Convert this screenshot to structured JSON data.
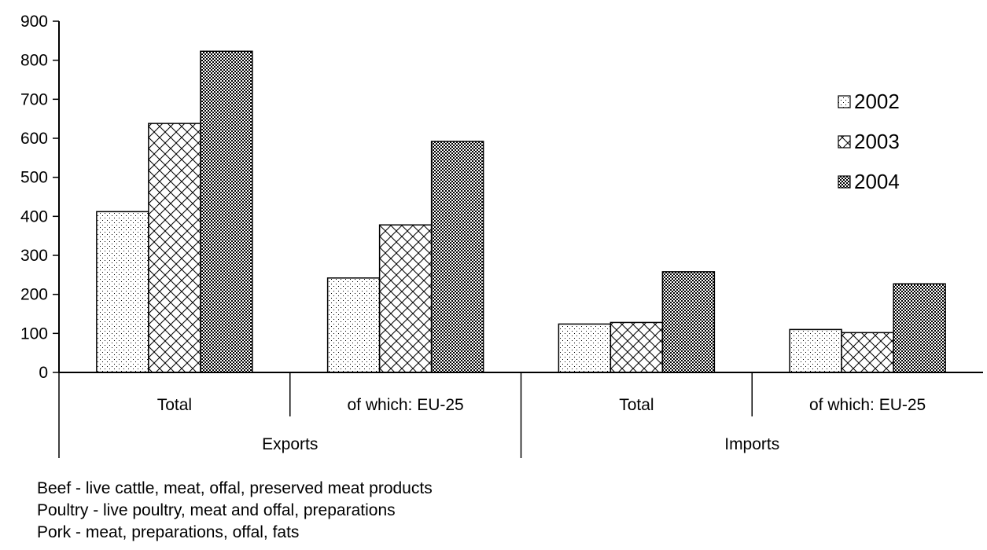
{
  "chart_data": {
    "type": "bar",
    "groups": [
      {
        "label": "Exports",
        "categories": [
          "Total",
          "of which: EU-25"
        ]
      },
      {
        "label": "Imports",
        "categories": [
          "Total",
          "of which: EU-25"
        ]
      }
    ],
    "categories": [
      "Total",
      "of which: EU-25",
      "Total",
      "of which: EU-25"
    ],
    "series": [
      {
        "name": "2002",
        "values": [
          412,
          242,
          124,
          110
        ]
      },
      {
        "name": "2003",
        "values": [
          638,
          378,
          128,
          102
        ]
      },
      {
        "name": "2004",
        "values": [
          823,
          592,
          258,
          227
        ]
      }
    ],
    "ylim": [
      0,
      900
    ],
    "yticks": [
      0,
      100,
      200,
      300,
      400,
      500,
      600,
      700,
      800,
      900
    ],
    "grid": false,
    "legend": "right",
    "title": "",
    "xlabel": "",
    "ylabel": ""
  },
  "footnotes": [
    "Beef - live cattle, meat, offal, preserved meat products",
    "Poultry - live poultry, meat and offal, preparations",
    "Pork - meat, preparations, offal, fats"
  ]
}
